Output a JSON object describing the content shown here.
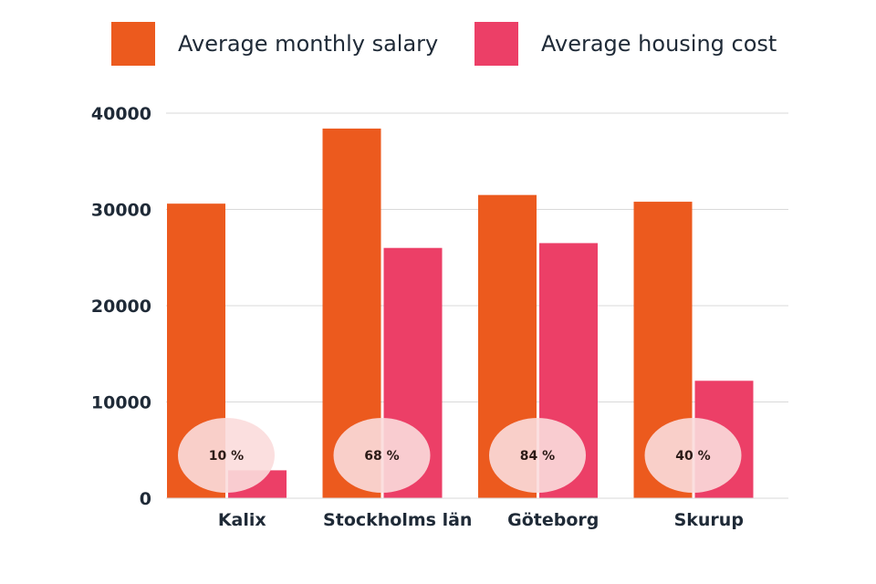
{
  "legend": {
    "series_a": "Average monthly salary",
    "series_b": "Average housing cost"
  },
  "colors": {
    "salary": "#ec5a1e",
    "housing": "#ec3f67",
    "bubble": "#fbdcdc",
    "grid": "#d9d9d9",
    "axis_text": "#1f2a37"
  },
  "chart_data": {
    "type": "bar",
    "categories": [
      "Kalix",
      "Stockholms län",
      "Göteborg",
      "Skurup"
    ],
    "series": [
      {
        "name": "Average monthly salary",
        "values": [
          30600,
          38400,
          31500,
          30800
        ]
      },
      {
        "name": "Average housing cost",
        "values": [
          2900,
          26000,
          26500,
          12200
        ]
      }
    ],
    "annotations": [
      "10 %",
      "68 %",
      "84 %",
      "40 %"
    ],
    "ylim": [
      0,
      40000
    ],
    "yticks": [
      "0",
      "10000",
      "20000",
      "30000",
      "40000"
    ],
    "grid": true,
    "legend_position": "top"
  }
}
